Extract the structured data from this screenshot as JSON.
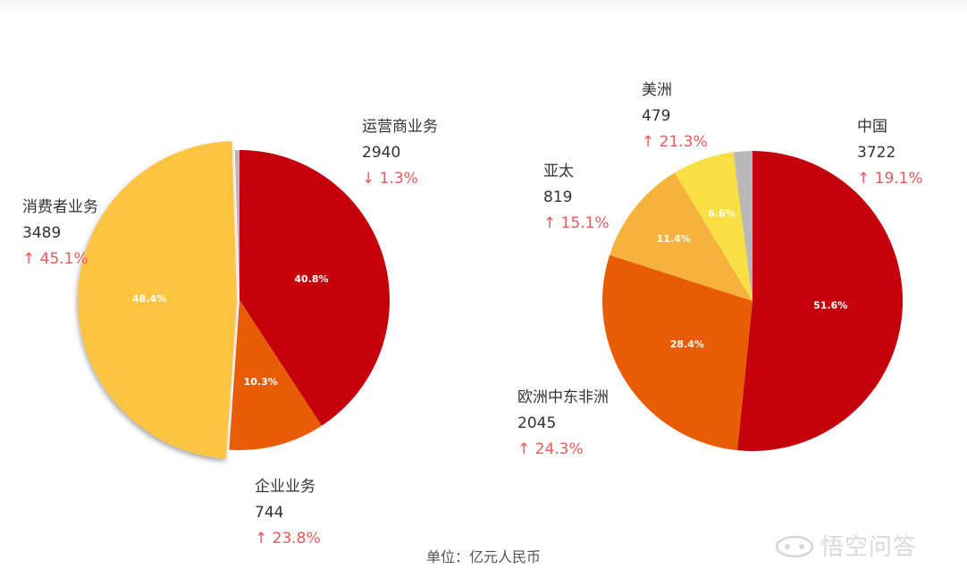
{
  "unit_note": "单位：亿元人民币",
  "watermark": "悟空问答",
  "chart_data": [
    {
      "type": "pie",
      "slices": [
        {
          "label": "运营商业务",
          "value": 2940,
          "percent": "40.8%",
          "change": "↓ 1.3%",
          "color": "#c4000b"
        },
        {
          "label": "企业业务",
          "value": 744,
          "percent": "10.3%",
          "change": "↑ 23.8%",
          "color": "#e85d04"
        },
        {
          "label": "消费者业务",
          "value": 3489,
          "percent": "48.4%",
          "change": "↑ 45.1%",
          "color": "#fcc440",
          "exploded": true
        },
        {
          "label": "",
          "value": 36,
          "percent": "",
          "change": "",
          "color": "#b8b8b8"
        }
      ]
    },
    {
      "type": "pie",
      "slices": [
        {
          "label": "中国",
          "value": 3722,
          "percent": "51.6%",
          "change": "↑ 19.1%",
          "color": "#c4000b"
        },
        {
          "label": "欧洲中东非洲",
          "value": 2045,
          "percent": "28.4%",
          "change": "↑ 24.3%",
          "color": "#e85d04"
        },
        {
          "label": "亚太",
          "value": 819,
          "percent": "11.4%",
          "change": "↑ 15.1%",
          "color": "#f6b23a"
        },
        {
          "label": "美洲",
          "value": 479,
          "percent": "6.6%",
          "change": "↑ 21.3%",
          "color": "#f8e044"
        },
        {
          "label": "",
          "value": 147,
          "percent": "",
          "change": "",
          "color": "#b8b8b8"
        }
      ]
    }
  ]
}
